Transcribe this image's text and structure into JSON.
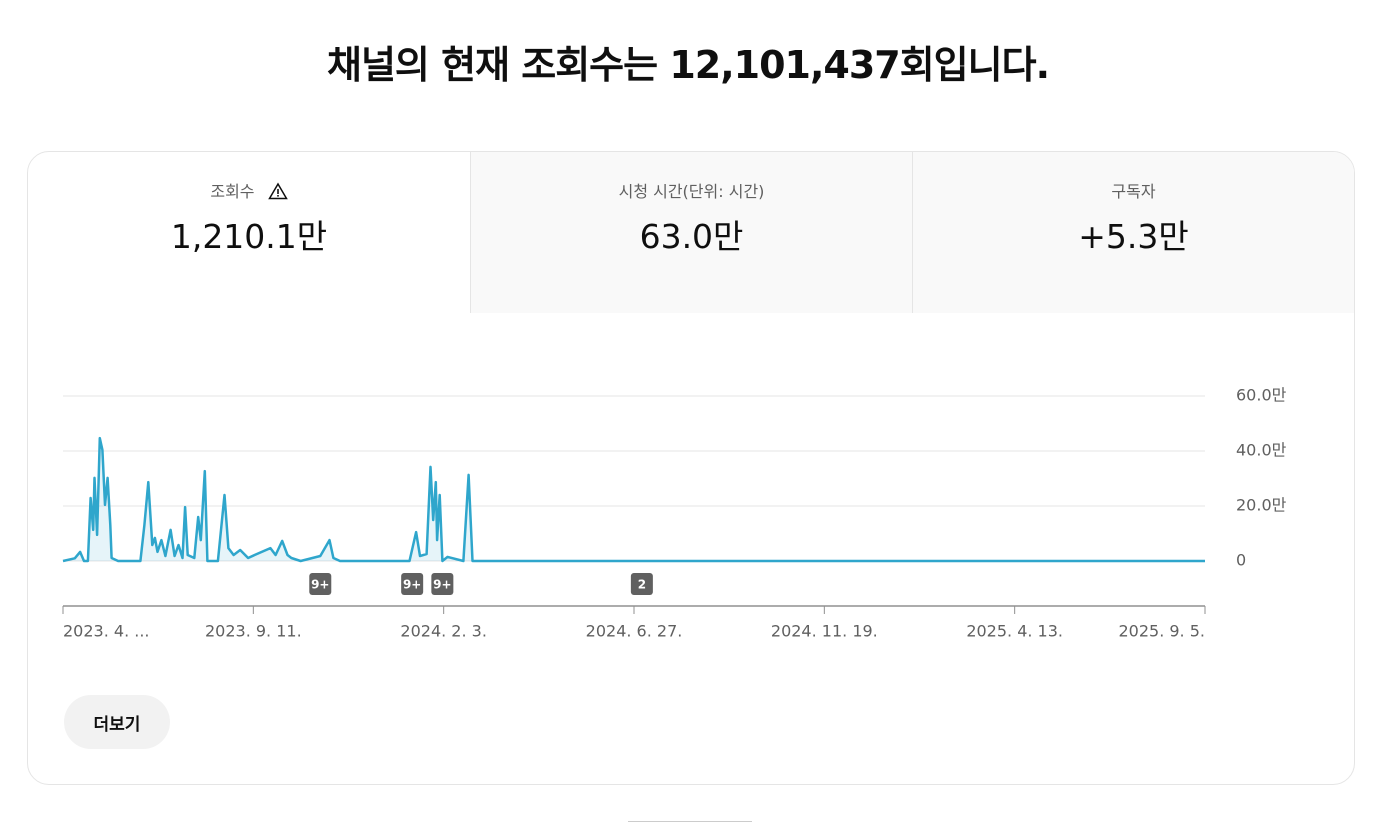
{
  "headline": "채널의 현재 조회수는 12,101,437회입니다.",
  "tabs": [
    {
      "label": "조회수",
      "value": "1,210.1만"
    },
    {
      "label": "시청 시간(단위: 시간)",
      "value": "63.0만"
    },
    {
      "label": "구독자",
      "value": "+5.3만"
    }
  ],
  "chart_data": {
    "type": "line",
    "x": [
      "2023-04-19",
      "2023-04-28",
      "2023-05-02",
      "2023-05-05",
      "2023-05-08",
      "2023-05-10",
      "2023-05-12",
      "2023-05-13",
      "2023-05-15",
      "2023-05-17",
      "2023-05-19",
      "2023-05-21",
      "2023-05-23",
      "2023-05-25",
      "2023-05-26",
      "2023-05-31",
      "2023-06-17",
      "2023-06-20",
      "2023-06-23",
      "2023-06-26",
      "2023-06-28",
      "2023-06-30",
      "2023-07-03",
      "2023-07-06",
      "2023-07-10",
      "2023-07-13",
      "2023-07-16",
      "2023-07-19",
      "2023-07-21",
      "2023-07-23",
      "2023-07-28",
      "2023-07-31",
      "2023-08-02",
      "2023-08-05",
      "2023-08-07",
      "2023-08-15",
      "2023-08-20",
      "2023-08-23",
      "2023-08-27",
      "2023-09-01",
      "2023-09-07",
      "2023-09-12",
      "2023-09-24",
      "2023-09-28",
      "2023-10-03",
      "2023-10-07",
      "2023-10-10",
      "2023-10-17",
      "2023-11-01",
      "2023-11-08",
      "2023-11-11",
      "2023-11-16",
      "2024-01-08",
      "2024-01-13",
      "2024-01-16",
      "2024-01-21",
      "2024-01-24",
      "2024-01-26",
      "2024-01-28",
      "2024-01-29",
      "2024-01-31",
      "2024-02-02",
      "2024-02-06",
      "2024-02-18",
      "2024-02-22",
      "2024-02-25",
      "2025-09-05"
    ],
    "series": [
      {
        "name": "조회수",
        "color": "#2fa6cc",
        "values": [
          0,
          10000,
          33000,
          0,
          0,
          229000,
          113000,
          302000,
          95000,
          447000,
          404000,
          204000,
          302000,
          131000,
          11000,
          0,
          0,
          131000,
          287000,
          58000,
          84000,
          33000,
          76000,
          18000,
          113000,
          18000,
          58000,
          11000,
          196000,
          22000,
          11000,
          160000,
          76000,
          327000,
          0,
          0,
          240000,
          47000,
          22000,
          40000,
          11000,
          22000,
          47000,
          22000,
          73000,
          22000,
          11000,
          0,
          18000,
          76000,
          11000,
          0,
          0,
          105000,
          18000,
          25000,
          342000,
          149000,
          287000,
          76000,
          240000,
          0,
          15000,
          0,
          313000,
          0,
          0
        ]
      }
    ],
    "xlim": [
      "2023-04-19",
      "2025-09-05"
    ],
    "xticks": [
      {
        "value": "2023-04-19",
        "label": "2023. 4. ..."
      },
      {
        "value": "2023-09-11",
        "label": "2023. 9. 11."
      },
      {
        "value": "2024-02-03",
        "label": "2024. 2. 3."
      },
      {
        "value": "2024-06-27",
        "label": "2024. 6. 27."
      },
      {
        "value": "2024-11-19",
        "label": "2024. 11. 19."
      },
      {
        "value": "2025-04-13",
        "label": "2025. 4. 13."
      },
      {
        "value": "2025-09-05",
        "label": "2025. 9. 5."
      }
    ],
    "ylim": [
      0,
      600000
    ],
    "yticks": [
      0,
      {
        "value": 200000,
        "label": "20.0만"
      },
      {
        "value": 400000,
        "label": "40.0만"
      },
      {
        "value": 600000,
        "label": "60.0만"
      }
    ],
    "grid": true,
    "annotations": [
      {
        "x": "2023-11-01",
        "label": "9+"
      },
      {
        "x": "2024-01-10",
        "label": "9+"
      },
      {
        "x": "2024-02-02",
        "label": "9+"
      },
      {
        "x": "2024-07-03",
        "label": "2"
      }
    ]
  },
  "button": "더보기"
}
